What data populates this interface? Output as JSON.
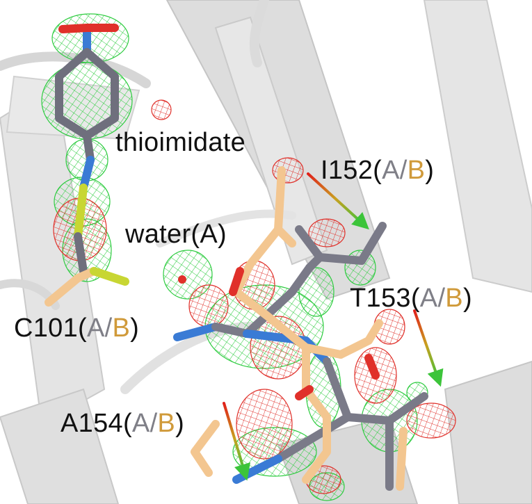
{
  "labels": {
    "thioimidate": "thioimidate",
    "water": "water(A)",
    "i152_res": "I152(",
    "t153_res": "T153(",
    "a154_res": "A154(",
    "c101_res": "C101(",
    "chain_a": "A",
    "slash": "/",
    "chain_b": "B",
    "close": ")"
  },
  "colors": {
    "background": "#ffffff",
    "cartoon": "#d9d9d9",
    "chain_a_carbon": "#7f7f87",
    "chain_b_carbon": "#f3c690",
    "nitrogen": "#3a7bd5",
    "oxygen": "#e0302a",
    "sulfur": "#c8d633",
    "positive_density": "#2ecc40",
    "negative_density": "#e0302a",
    "arrow_start": "#e0201a",
    "arrow_end": "#3cc43a"
  }
}
